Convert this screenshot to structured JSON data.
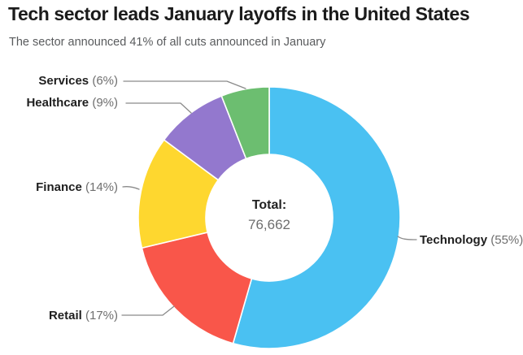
{
  "chart_data": {
    "type": "pie",
    "donut": true,
    "title": "Tech sector leads January layoffs in the United States",
    "subtitle": "The sector announced 41% of all cuts announced in January",
    "unit": "percent",
    "direction": "clockwise",
    "start_angle_deg": 0,
    "legend_position": "outside-callouts",
    "total_label": "Total:",
    "total_value": "76,662",
    "categories": [
      "Technology",
      "Retail",
      "Finance",
      "Healthcare",
      "Services"
    ],
    "values": [
      55,
      17,
      14,
      9,
      6
    ],
    "segments": [
      {
        "label": "Technology",
        "value": 55,
        "display": "(55%)",
        "color": "#4AC1F2"
      },
      {
        "label": "Retail",
        "value": 17,
        "display": "(17%)",
        "color": "#F9564A"
      },
      {
        "label": "Finance",
        "value": 14,
        "display": "(14%)",
        "color": "#FED72F"
      },
      {
        "label": "Healthcare",
        "value": 9,
        "display": "(9%)",
        "color": "#9378CE"
      },
      {
        "label": "Services",
        "value": 6,
        "display": "(6%)",
        "color": "#6CBE70"
      }
    ]
  }
}
